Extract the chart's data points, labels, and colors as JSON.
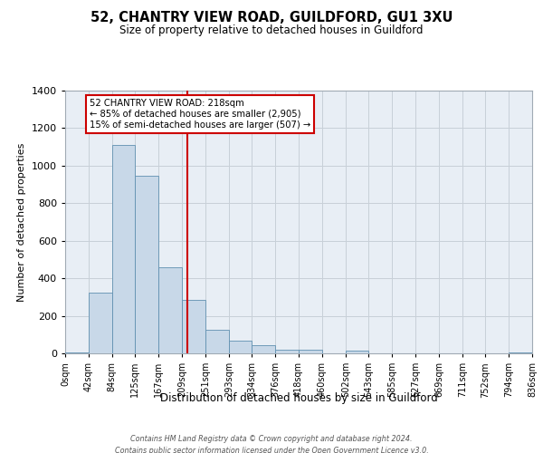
{
  "title": "52, CHANTRY VIEW ROAD, GUILDFORD, GU1 3XU",
  "subtitle": "Size of property relative to detached houses in Guildford",
  "xlabel": "Distribution of detached houses by size in Guildford",
  "ylabel": "Number of detached properties",
  "bin_labels": [
    "0sqm",
    "42sqm",
    "84sqm",
    "125sqm",
    "167sqm",
    "209sqm",
    "251sqm",
    "293sqm",
    "334sqm",
    "376sqm",
    "418sqm",
    "460sqm",
    "502sqm",
    "543sqm",
    "585sqm",
    "627sqm",
    "669sqm",
    "711sqm",
    "752sqm",
    "794sqm",
    "836sqm"
  ],
  "bin_edges": [
    0,
    42,
    84,
    125,
    167,
    209,
    251,
    293,
    334,
    376,
    418,
    460,
    502,
    543,
    585,
    627,
    669,
    711,
    752,
    794,
    836
  ],
  "bar_heights": [
    5,
    325,
    1110,
    945,
    460,
    285,
    125,
    68,
    42,
    18,
    18,
    0,
    15,
    0,
    0,
    0,
    0,
    0,
    0,
    5,
    0
  ],
  "bar_color": "#c8d8e8",
  "bar_edge_color": "#6090b0",
  "vline_x": 218,
  "vline_color": "#cc0000",
  "annotation_title": "52 CHANTRY VIEW ROAD: 218sqm",
  "annotation_line1": "← 85% of detached houses are smaller (2,905)",
  "annotation_line2": "15% of semi-detached houses are larger (507) →",
  "annotation_box_color": "#ffffff",
  "annotation_box_edge": "#cc0000",
  "ylim": [
    0,
    1400
  ],
  "yticks": [
    0,
    200,
    400,
    600,
    800,
    1000,
    1200,
    1400
  ],
  "background_color": "#ffffff",
  "plot_background": "#e8eef5",
  "grid_color": "#c8d0d8",
  "footer_line1": "Contains HM Land Registry data © Crown copyright and database right 2024.",
  "footer_line2": "Contains public sector information licensed under the Open Government Licence v3.0."
}
